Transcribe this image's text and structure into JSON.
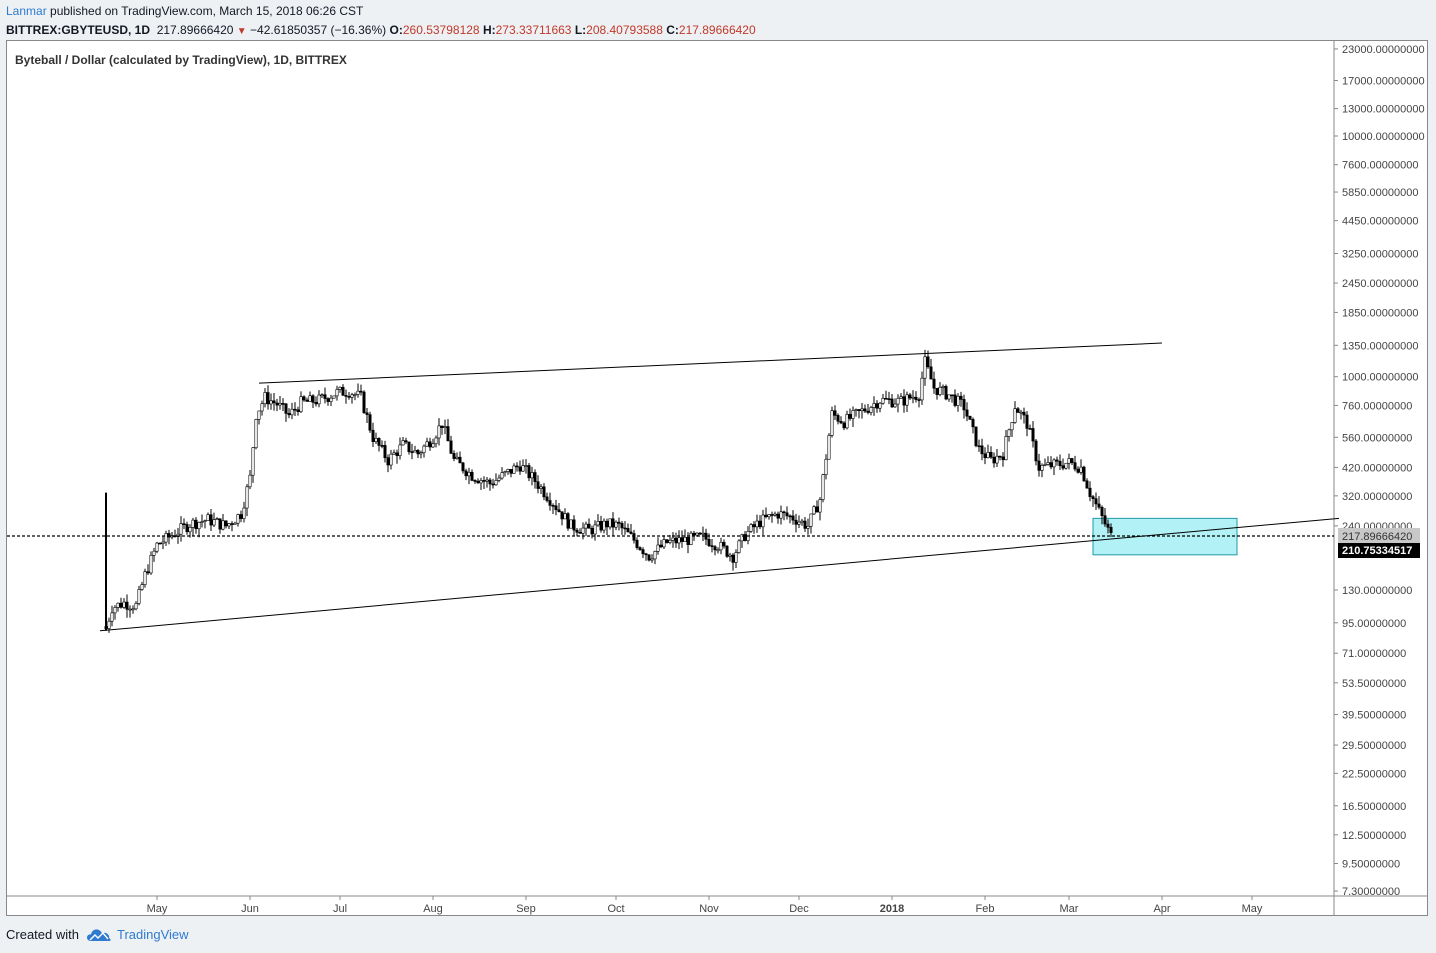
{
  "header": {
    "author": "Lanmar",
    "published_text": "published on TradingView.com, March 15, 2018 06:26 CST"
  },
  "ohlc": {
    "symbol": "BITTREX:GBYTEUSD, 1D",
    "last": "217.89666420",
    "change": "−42.61850357 (−16.36%)",
    "open_label": "O:",
    "open": "260.53798128",
    "high_label": "H:",
    "high": "273.33711663",
    "low_label": "L:",
    "low": "208.40793588",
    "close_label": "C:",
    "close": "217.89666420"
  },
  "chart_title": "Byteball / Dollar (calculated by TradingView), 1D, BITTREX",
  "footer": {
    "created_with": "Created with",
    "brand": "TradingView"
  },
  "chart_data": {
    "type": "candlestick",
    "y_scale": "log",
    "y_tick_labels": [
      "23000.00000000",
      "17000.00000000",
      "13000.00000000",
      "10000.00000000",
      "7600.00000000",
      "5850.00000000",
      "4450.00000000",
      "3250.00000000",
      "2450.00000000",
      "1850.00000000",
      "1350.00000000",
      "1000.00000000",
      "760.00000000",
      "560.00000000",
      "420.00000000",
      "320.00000000",
      "240.00000000",
      "130.00000000",
      "95.00000000",
      "71.00000000",
      "53.50000000",
      "39.50000000",
      "29.50000000",
      "22.50000000",
      "16.50000000",
      "12.50000000",
      "9.50000000",
      "7.30000000"
    ],
    "y_ticks": [
      23000,
      17000,
      13000,
      10000,
      7600,
      5850,
      4450,
      3250,
      2450,
      1850,
      1350,
      1000,
      760,
      560,
      420,
      320,
      240,
      130,
      95,
      71,
      53.5,
      39.5,
      29.5,
      22.5,
      16.5,
      12.5,
      9.5,
      7.3
    ],
    "x_tick_labels": [
      "May",
      "Jun",
      "Jul",
      "Aug",
      "Sep",
      "Oct",
      "Nov",
      "Dec",
      "2018",
      "Feb",
      "Mar",
      "Apr",
      "May"
    ],
    "x_ticks": [
      "2017-05-01",
      "2017-06-01",
      "2017-07-01",
      "2017-08-01",
      "2017-09-01",
      "2017-10-01",
      "2017-11-01",
      "2017-12-01",
      "2018-01-01",
      "2018-02-01",
      "2018-03-01",
      "2018-04-01",
      "2018-05-01"
    ],
    "current_price_label": "217.89666420",
    "current_price": 217.8966642,
    "marker_price_label": "210.75334517",
    "marker_price": 210.75334517,
    "close_path": [
      [
        "2017-04-14",
        90
      ],
      [
        "2017-04-16",
        110
      ],
      [
        "2017-04-20",
        115
      ],
      [
        "2017-04-24",
        112
      ],
      [
        "2017-04-27",
        150
      ],
      [
        "2017-05-01",
        200
      ],
      [
        "2017-05-06",
        220
      ],
      [
        "2017-05-12",
        245
      ],
      [
        "2017-05-18",
        255
      ],
      [
        "2017-05-24",
        240
      ],
      [
        "2017-05-29",
        270
      ],
      [
        "2017-06-01",
        380
      ],
      [
        "2017-06-03",
        700
      ],
      [
        "2017-06-06",
        820
      ],
      [
        "2017-06-10",
        770
      ],
      [
        "2017-06-14",
        690
      ],
      [
        "2017-06-18",
        780
      ],
      [
        "2017-06-24",
        800
      ],
      [
        "2017-06-30",
        860
      ],
      [
        "2017-07-04",
        870
      ],
      [
        "2017-07-08",
        820
      ],
      [
        "2017-07-12",
        560
      ],
      [
        "2017-07-17",
        450
      ],
      [
        "2017-07-22",
        520
      ],
      [
        "2017-07-27",
        480
      ],
      [
        "2017-08-01",
        560
      ],
      [
        "2017-08-04",
        640
      ],
      [
        "2017-08-08",
        450
      ],
      [
        "2017-08-14",
        390
      ],
      [
        "2017-08-20",
        360
      ],
      [
        "2017-08-26",
        400
      ],
      [
        "2017-08-30",
        430
      ],
      [
        "2017-09-04",
        370
      ],
      [
        "2017-09-10",
        300
      ],
      [
        "2017-09-16",
        240
      ],
      [
        "2017-09-22",
        230
      ],
      [
        "2017-09-28",
        245
      ],
      [
        "2017-10-02",
        240
      ],
      [
        "2017-10-07",
        210
      ],
      [
        "2017-10-12",
        180
      ],
      [
        "2017-10-18",
        205
      ],
      [
        "2017-10-24",
        210
      ],
      [
        "2017-10-30",
        215
      ],
      [
        "2017-11-04",
        200
      ],
      [
        "2017-11-09",
        180
      ],
      [
        "2017-11-13",
        220
      ],
      [
        "2017-11-18",
        250
      ],
      [
        "2017-11-24",
        270
      ],
      [
        "2017-11-29",
        260
      ],
      [
        "2017-12-04",
        240
      ],
      [
        "2017-12-08",
        310
      ],
      [
        "2017-12-12",
        700
      ],
      [
        "2017-12-16",
        650
      ],
      [
        "2017-12-22",
        720
      ],
      [
        "2017-12-28",
        800
      ],
      [
        "2018-01-04",
        790
      ],
      [
        "2018-01-10",
        850
      ],
      [
        "2018-01-12",
        1150
      ],
      [
        "2018-01-15",
        900
      ],
      [
        "2018-01-20",
        840
      ],
      [
        "2018-01-25",
        750
      ],
      [
        "2018-01-30",
        500
      ],
      [
        "2018-02-03",
        450
      ],
      [
        "2018-02-07",
        480
      ],
      [
        "2018-02-11",
        760
      ],
      [
        "2018-02-15",
        640
      ],
      [
        "2018-02-19",
        420
      ],
      [
        "2018-02-24",
        430
      ],
      [
        "2018-03-01",
        440
      ],
      [
        "2018-03-05",
        420
      ],
      [
        "2018-03-08",
        330
      ],
      [
        "2018-03-12",
        260
      ],
      [
        "2018-03-15",
        218
      ]
    ],
    "spike": {
      "date": "2017-04-14",
      "high": 330,
      "low": 88
    },
    "trendlines": [
      {
        "from": [
          "2017-06-04",
          940
        ],
        "to": [
          "2018-04-01",
          1380
        ]
      },
      {
        "from": [
          "2017-04-12",
          88
        ],
        "to": [
          "2018-05-30",
          258
        ]
      }
    ],
    "zone": {
      "from": "2018-03-09",
      "to": "2018-04-26",
      "top": 258,
      "bottom": 182,
      "color": "#b2f2f6",
      "border": "#1f9aa6"
    }
  }
}
